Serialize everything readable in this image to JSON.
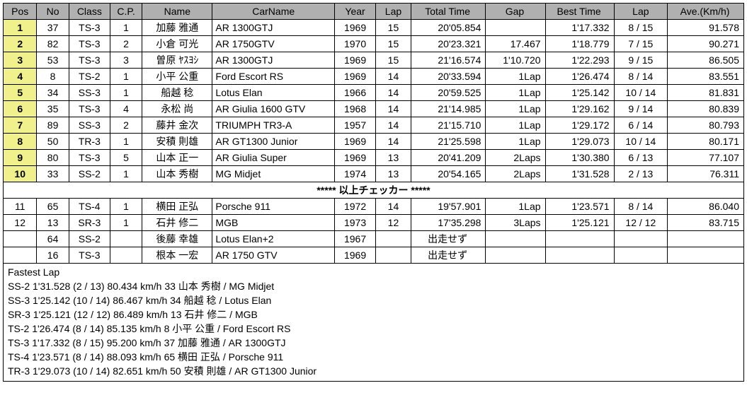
{
  "headers": {
    "pos": "Pos",
    "no": "No",
    "class": "Class",
    "cp": "C.P.",
    "name": "Name",
    "car": "CarName",
    "year": "Year",
    "lap": "Lap",
    "time": "Total Time",
    "gap": "Gap",
    "best": "Best Time",
    "blap": "Lap",
    "ave": "Ave.(Km/h)"
  },
  "separator": "***** 以上チェッカー *****",
  "rows_top": [
    {
      "pos": "1",
      "no": "37",
      "class": "TS-3",
      "cp": "1",
      "name": "加藤 雅通",
      "car": "AR 1300GTJ",
      "year": "1969",
      "lap": "15",
      "time": "20'05.854",
      "gap": "",
      "best": "1'17.332",
      "blap": "8 / 15",
      "ave": "91.578",
      "hl": true
    },
    {
      "pos": "2",
      "no": "82",
      "class": "TS-3",
      "cp": "2",
      "name": "小倉 可光",
      "car": "AR 1750GTV",
      "year": "1970",
      "lap": "15",
      "time": "20'23.321",
      "gap": "17.467",
      "best": "1'18.779",
      "blap": "7 / 15",
      "ave": "90.271",
      "hl": true
    },
    {
      "pos": "3",
      "no": "53",
      "class": "TS-3",
      "cp": "3",
      "name": "曽原 ﾔｽﾖｼ",
      "car": "AR 1300GTJ",
      "year": "1969",
      "lap": "15",
      "time": "21'16.574",
      "gap": "1'10.720",
      "best": "1'22.293",
      "blap": "9 / 15",
      "ave": "86.505",
      "hl": true
    },
    {
      "pos": "4",
      "no": "8",
      "class": "TS-2",
      "cp": "1",
      "name": "小平 公重",
      "car": "Ford Escort RS",
      "year": "1969",
      "lap": "14",
      "time": "20'33.594",
      "gap": "1Lap",
      "best": "1'26.474",
      "blap": "8 / 14",
      "ave": "83.551",
      "hl": true
    },
    {
      "pos": "5",
      "no": "34",
      "class": "SS-3",
      "cp": "1",
      "name": "船越 稔",
      "car": "Lotus Elan",
      "year": "1966",
      "lap": "14",
      "time": "20'59.525",
      "gap": "1Lap",
      "best": "1'25.142",
      "blap": "10 / 14",
      "ave": "81.831",
      "hl": true
    },
    {
      "pos": "6",
      "no": "35",
      "class": "TS-3",
      "cp": "4",
      "name": "永松 尚",
      "car": "AR Giulia 1600 GTV",
      "year": "1968",
      "lap": "14",
      "time": "21'14.985",
      "gap": "1Lap",
      "best": "1'29.162",
      "blap": "9 / 14",
      "ave": "80.839",
      "hl": true
    },
    {
      "pos": "7",
      "no": "89",
      "class": "SS-3",
      "cp": "2",
      "name": "藤井 金次",
      "car": "TRIUMPH TR3-A",
      "year": "1957",
      "lap": "14",
      "time": "21'15.710",
      "gap": "1Lap",
      "best": "1'29.172",
      "blap": "6 / 14",
      "ave": "80.793",
      "hl": true
    },
    {
      "pos": "8",
      "no": "50",
      "class": "TR-3",
      "cp": "1",
      "name": "安積 則雄",
      "car": "AR GT1300 Junior",
      "year": "1969",
      "lap": "14",
      "time": "21'25.598",
      "gap": "1Lap",
      "best": "1'29.073",
      "blap": "10 / 14",
      "ave": "80.171",
      "hl": true
    },
    {
      "pos": "9",
      "no": "80",
      "class": "TS-3",
      "cp": "5",
      "name": "山本 正一",
      "car": "AR Giulia Super",
      "year": "1969",
      "lap": "13",
      "time": "20'41.209",
      "gap": "2Laps",
      "best": "1'30.380",
      "blap": "6 / 13",
      "ave": "77.107",
      "hl": true
    },
    {
      "pos": "10",
      "no": "33",
      "class": "SS-2",
      "cp": "1",
      "name": "山本 秀樹",
      "car": "MG Midjet",
      "year": "1974",
      "lap": "13",
      "time": "20'54.165",
      "gap": "2Laps",
      "best": "1'31.528",
      "blap": "2 / 13",
      "ave": "76.311",
      "hl": true
    }
  ],
  "rows_bottom": [
    {
      "pos": "11",
      "no": "65",
      "class": "TS-4",
      "cp": "1",
      "name": "横田 正弘",
      "car": "Porsche 911",
      "year": "1972",
      "lap": "14",
      "time": "19'57.901",
      "gap": "1Lap",
      "best": "1'23.571",
      "blap": "8 / 14",
      "ave": "86.040",
      "hl": false
    },
    {
      "pos": "12",
      "no": "13",
      "class": "SR-3",
      "cp": "1",
      "name": "石井 修二",
      "car": "MGB",
      "year": "1973",
      "lap": "12",
      "time": "17'35.298",
      "gap": "3Laps",
      "best": "1'25.121",
      "blap": "12 / 12",
      "ave": "83.715",
      "hl": false
    },
    {
      "pos": "",
      "no": "64",
      "class": "SS-2",
      "cp": "",
      "name": "後藤 幸雄",
      "car": "Lotus Elan+2",
      "year": "1967",
      "lap": "",
      "time": "出走せず",
      "gap": "",
      "best": "",
      "blap": "",
      "ave": "",
      "hl": false
    },
    {
      "pos": "",
      "no": "16",
      "class": "TS-3",
      "cp": "",
      "name": "根本 一宏",
      "car": "AR 1750 GTV",
      "year": "1969",
      "lap": "",
      "time": "出走せず",
      "gap": "",
      "best": "",
      "blap": "",
      "ave": "",
      "hl": false
    }
  ],
  "fastest": {
    "title": "Fastest Lap",
    "lines": [
      "SS-2 1'31.528 (2 / 13) 80.434 km/h 33 山本 秀樹 / MG Midjet",
      "SS-3 1'25.142 (10 / 14) 86.467 km/h 34 船越 稔 / Lotus Elan",
      "SR-3 1'25.121 (12 / 12) 86.489 km/h 13 石井 修二 / MGB",
      "TS-2 1'26.474 (8 / 14) 85.135 km/h 8 小平 公重 / Ford Escort RS",
      "TS-3 1'17.332 (8 / 15) 95.200 km/h 37 加藤 雅通 / AR 1300GTJ",
      "TS-4 1'23.571 (8 / 14) 88.093 km/h 65 横田 正弘 / Porsche 911",
      "TR-3 1'29.073 (10 / 14) 82.651 km/h 50 安積 則雄 / AR GT1300 Junior"
    ]
  }
}
